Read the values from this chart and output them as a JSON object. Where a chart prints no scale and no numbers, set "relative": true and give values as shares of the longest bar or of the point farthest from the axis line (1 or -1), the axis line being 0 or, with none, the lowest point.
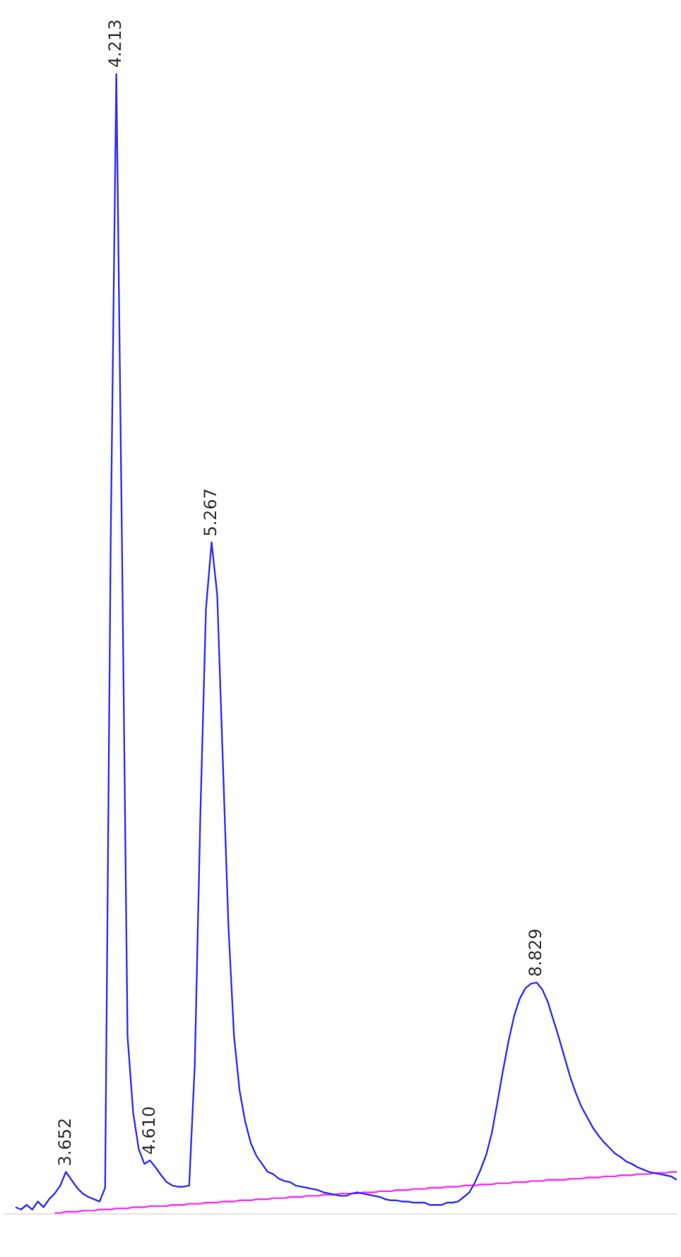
{
  "chart_data": {
    "type": "line",
    "relative": true,
    "marker": "none",
    "annotations": [
      {
        "text": "3.652",
        "y": 0.037
      },
      {
        "text": "4.213",
        "y": 1
      },
      {
        "text": "4.610",
        "y": 0.047
      },
      {
        "text": "5.267",
        "y": 0.589
      },
      {
        "text": "8.829",
        "y": 0.203
      }
    ],
    "categories": [
      null,
      null,
      null,
      null,
      null,
      null,
      null,
      null,
      null,
      null,
      null,
      null,
      null,
      null,
      null,
      null,
      null,
      null,
      null,
      null,
      null,
      null,
      null,
      null,
      null,
      null,
      null,
      null,
      null,
      null,
      null,
      null,
      null,
      null,
      null,
      null,
      null,
      null,
      null,
      null,
      null,
      null,
      null,
      null,
      null,
      null,
      null,
      null,
      null,
      null,
      null,
      null,
      null,
      null,
      null,
      null,
      null,
      null,
      null,
      null,
      null,
      null,
      null,
      null,
      null,
      null,
      null,
      null,
      null,
      null,
      null,
      null,
      null,
      null,
      null,
      null,
      null,
      null,
      null,
      null,
      null,
      null,
      null,
      null,
      null,
      null,
      null,
      null,
      null,
      null,
      null,
      null,
      null,
      null,
      null,
      null,
      null,
      null,
      null,
      null,
      null,
      null,
      null,
      null,
      null,
      null,
      null,
      null,
      null,
      null,
      null,
      null,
      null,
      null,
      null,
      null,
      null,
      null,
      null,
      null,
      null
    ],
    "series": [
      {
        "color": "#3333ff",
        "values": [
          null,
          null,
          0.006,
          0.004,
          0.008,
          0.004,
          0.011,
          0.006,
          0.013,
          0.018,
          0.025,
          0.037,
          0.03,
          0.023,
          0.018,
          0.015,
          0.013,
          0.011,
          0.023,
          0.591,
          1,
          0.591,
          0.156,
          0.089,
          0.057,
          0.044,
          0.047,
          0.041,
          0.034,
          0.028,
          0.025,
          0.024,
          0.024,
          0.025,
          0.131,
          0.351,
          0.531,
          0.589,
          0.543,
          0.398,
          0.253,
          0.156,
          0.108,
          0.081,
          0.062,
          0.051,
          0.044,
          0.037,
          0.035,
          0.031,
          0.029,
          0.028,
          0.025,
          0.024,
          0.023,
          0.022,
          0.021,
          0.019,
          0.018,
          0.017,
          0.016,
          0.016,
          0.018,
          0.019,
          0.018,
          0.017,
          0.016,
          0.015,
          0.013,
          0.012,
          0.012,
          0.011,
          0.011,
          0.01,
          0.01,
          0.01,
          0.008,
          0.008,
          0.008,
          0.01,
          0.01,
          0.011,
          0.015,
          0.019,
          0.028,
          0.039,
          0.052,
          0.071,
          0.098,
          0.126,
          0.152,
          0.174,
          0.189,
          0.198,
          0.202,
          0.203,
          0.197,
          0.186,
          0.17,
          0.154,
          0.137,
          0.12,
          0.106,
          0.094,
          0.085,
          0.076,
          0.069,
          0.063,
          0.058,
          0.053,
          0.05,
          0.046,
          0.044,
          0.041,
          0.039,
          0.037,
          0.036,
          0.035,
          0.034,
          0.033,
          0.03
        ]
      },
      {
        "color": "#ff33ff",
        "values": [
          null,
          null,
          null,
          null,
          null,
          null,
          null,
          null,
          null,
          0.001,
          0.001,
          0.002,
          0.002,
          0.002,
          0.003,
          0.003,
          0.003,
          0.004,
          0.004,
          0.004,
          0.005,
          0.005,
          0.005,
          0.006,
          0.006,
          0.006,
          0.007,
          0.007,
          0.007,
          0.007,
          0.008,
          0.008,
          0.008,
          0.009,
          0.009,
          0.009,
          0.01,
          0.01,
          0.01,
          0.011,
          0.011,
          0.011,
          0.012,
          0.012,
          0.012,
          0.013,
          0.013,
          0.013,
          0.014,
          0.014,
          0.014,
          0.015,
          0.015,
          0.015,
          0.016,
          0.016,
          0.016,
          0.017,
          0.017,
          0.017,
          0.018,
          0.018,
          0.018,
          0.018,
          0.019,
          0.019,
          0.019,
          0.02,
          0.02,
          0.02,
          0.021,
          0.021,
          0.021,
          0.022,
          0.022,
          0.022,
          0.023,
          0.023,
          0.023,
          0.024,
          0.024,
          0.024,
          0.025,
          0.025,
          0.025,
          0.026,
          0.026,
          0.026,
          0.027,
          0.027,
          0.027,
          0.028,
          0.028,
          0.028,
          0.029,
          0.029,
          0.029,
          0.03,
          0.03,
          0.03,
          0.03,
          0.031,
          0.031,
          0.031,
          0.032,
          0.032,
          0.032,
          0.033,
          0.033,
          0.033,
          0.034,
          0.034,
          0.034,
          0.035,
          0.035,
          0.035,
          0.036,
          0.036,
          0.036,
          0.037,
          0.037
        ]
      }
    ]
  }
}
